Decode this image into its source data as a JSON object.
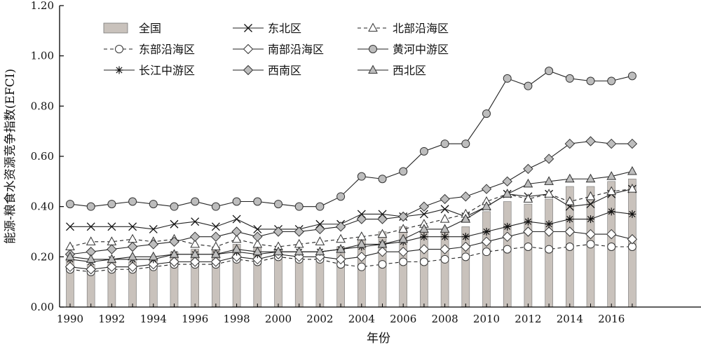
{
  "chart_data": {
    "type": "bar+line",
    "xlabel": "年份",
    "ylabel": "能源-粮食水资源竞争指数(EFCI)",
    "ylim": [
      0,
      1.2
    ],
    "yticks": [
      "0.00",
      "0.20",
      "0.40",
      "0.60",
      "0.80",
      "1.00",
      "1.20"
    ],
    "xticks": [
      "1990",
      "1992",
      "1994",
      "1996",
      "1998",
      "2000",
      "2002",
      "2004",
      "2006",
      "2008",
      "2010",
      "2012",
      "2014",
      "2016"
    ],
    "x": [
      1990,
      1991,
      1992,
      1993,
      1994,
      1995,
      1996,
      1997,
      1998,
      1999,
      2000,
      2001,
      2002,
      2003,
      2004,
      2005,
      2006,
      2007,
      2008,
      2009,
      2010,
      2011,
      2012,
      2013,
      2014,
      2015,
      2016,
      2017
    ],
    "legend_position": "top-left-inside",
    "grid": false,
    "series": [
      {
        "name": "全国",
        "kind": "bar",
        "marker": "bar",
        "dash": "",
        "values": [
          0.19,
          0.17,
          0.18,
          0.18,
          0.19,
          0.22,
          0.23,
          0.24,
          0.25,
          0.24,
          0.23,
          0.21,
          0.2,
          0.24,
          0.27,
          0.3,
          0.32,
          0.3,
          0.3,
          0.32,
          0.38,
          0.42,
          0.41,
          0.43,
          0.48,
          0.48,
          0.5,
          0.51
        ]
      },
      {
        "name": "东北区",
        "kind": "line",
        "marker": "x",
        "dash": "",
        "values": [
          0.32,
          0.32,
          0.32,
          0.32,
          0.31,
          0.33,
          0.34,
          0.32,
          0.35,
          0.31,
          0.31,
          0.31,
          0.33,
          0.33,
          0.37,
          0.37,
          0.36,
          0.37,
          0.39,
          0.36,
          0.4,
          0.45,
          0.44,
          0.45,
          0.4,
          0.41,
          0.45,
          0.47
        ]
      },
      {
        "name": "北部沿海区",
        "kind": "line",
        "marker": "triangle-open",
        "dash": "5,4",
        "values": [
          0.24,
          0.26,
          0.26,
          0.27,
          0.26,
          0.27,
          0.25,
          0.24,
          0.27,
          0.25,
          0.24,
          0.25,
          0.26,
          0.27,
          0.28,
          0.29,
          0.31,
          0.33,
          0.35,
          0.37,
          0.42,
          0.45,
          0.43,
          0.45,
          0.42,
          0.44,
          0.46,
          0.47
        ]
      },
      {
        "name": "东部沿海区",
        "kind": "line",
        "marker": "circle-open",
        "dash": "5,4",
        "values": [
          0.15,
          0.14,
          0.15,
          0.15,
          0.16,
          0.17,
          0.17,
          0.17,
          0.19,
          0.18,
          0.2,
          0.19,
          0.19,
          0.17,
          0.16,
          0.17,
          0.18,
          0.18,
          0.19,
          0.2,
          0.22,
          0.23,
          0.24,
          0.23,
          0.24,
          0.25,
          0.24,
          0.24
        ]
      },
      {
        "name": "南部沿海区",
        "kind": "line",
        "marker": "diamond-open",
        "dash": "",
        "values": [
          0.16,
          0.15,
          0.16,
          0.16,
          0.17,
          0.18,
          0.18,
          0.18,
          0.2,
          0.19,
          0.21,
          0.2,
          0.2,
          0.19,
          0.2,
          0.22,
          0.22,
          0.23,
          0.23,
          0.24,
          0.26,
          0.28,
          0.3,
          0.3,
          0.3,
          0.29,
          0.29,
          0.27
        ]
      },
      {
        "name": "黄河中游区",
        "kind": "line",
        "marker": "circle-filled",
        "dash": "",
        "values": [
          0.41,
          0.4,
          0.41,
          0.42,
          0.41,
          0.4,
          0.42,
          0.4,
          0.42,
          0.42,
          0.41,
          0.4,
          0.4,
          0.44,
          0.52,
          0.51,
          0.54,
          0.62,
          0.65,
          0.65,
          0.77,
          0.91,
          0.88,
          0.94,
          0.91,
          0.9,
          0.9,
          0.92
        ]
      },
      {
        "name": "长江中游区",
        "kind": "line",
        "marker": "star",
        "dash": "",
        "values": [
          0.19,
          0.18,
          0.19,
          0.19,
          0.19,
          0.21,
          0.21,
          0.21,
          0.22,
          0.21,
          0.22,
          0.22,
          0.22,
          0.23,
          0.24,
          0.25,
          0.26,
          0.28,
          0.28,
          0.28,
          0.3,
          0.32,
          0.34,
          0.33,
          0.35,
          0.35,
          0.38,
          0.37
        ]
      },
      {
        "name": "西南区",
        "kind": "line",
        "marker": "diamond-filled",
        "dash": "",
        "values": [
          0.21,
          0.22,
          0.23,
          0.24,
          0.25,
          0.26,
          0.28,
          0.28,
          0.3,
          0.28,
          0.3,
          0.3,
          0.31,
          0.32,
          0.35,
          0.35,
          0.36,
          0.4,
          0.43,
          0.44,
          0.47,
          0.5,
          0.55,
          0.59,
          0.65,
          0.66,
          0.65,
          0.65
        ]
      },
      {
        "name": "西北区",
        "kind": "line",
        "marker": "triangle-filled",
        "dash": "",
        "values": [
          0.2,
          0.19,
          0.19,
          0.2,
          0.2,
          0.21,
          0.21,
          0.21,
          0.23,
          0.22,
          0.22,
          0.22,
          0.22,
          0.23,
          0.25,
          0.25,
          0.27,
          0.31,
          0.31,
          0.35,
          0.4,
          0.45,
          0.49,
          0.5,
          0.51,
          0.51,
          0.52,
          0.54
        ]
      }
    ]
  }
}
